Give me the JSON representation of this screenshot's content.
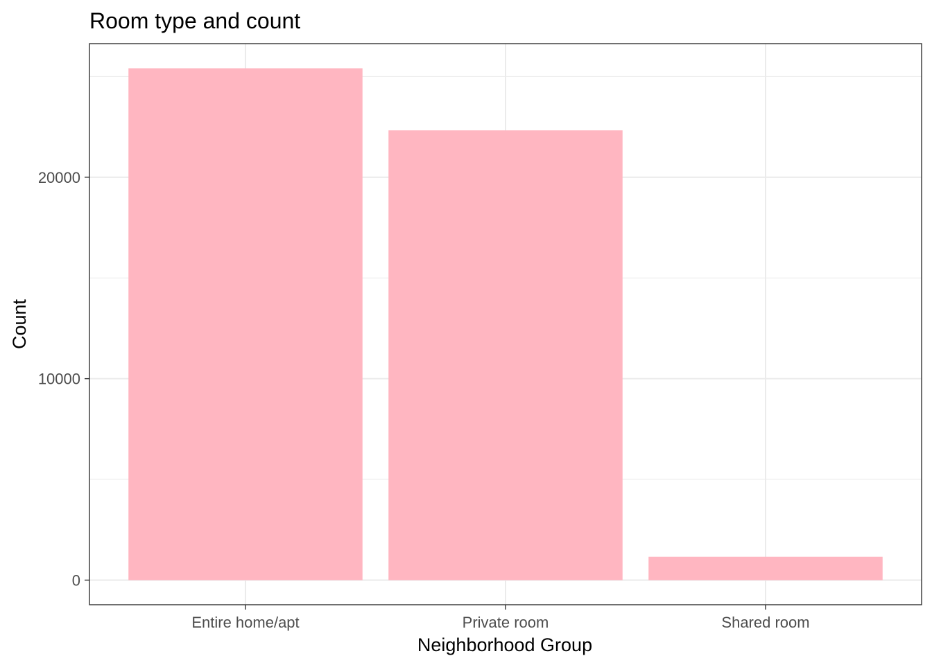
{
  "chart_data": {
    "type": "bar",
    "title": "Room type and count",
    "xlabel": "Neighborhood Group",
    "ylabel": "Count",
    "categories": [
      "Entire home/apt",
      "Private room",
      "Shared room"
    ],
    "values": [
      25409,
      22326,
      1160
    ],
    "ylim": [
      -1222,
      26631
    ],
    "yticks": [
      0,
      10000,
      20000
    ],
    "yticks_minor": [
      5000,
      15000,
      25000
    ],
    "grid": true,
    "legend": "none",
    "bar_color": "#FFB6C1",
    "panel_border_color": "#333333",
    "grid_color": "#EBEBEB",
    "background_color": "#FFFFFF"
  }
}
